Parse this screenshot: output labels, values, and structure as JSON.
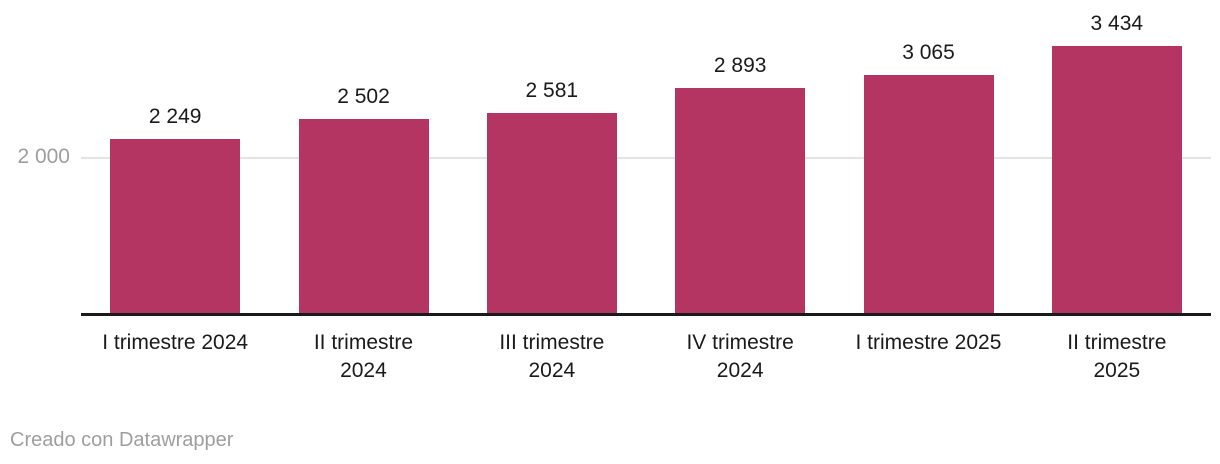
{
  "chart_data": {
    "type": "bar",
    "categories": [
      "I trimestre 2024",
      "II trimestre\n2024",
      "III trimestre\n2024",
      "IV trimestre\n2024",
      "I trimestre 2025",
      "II trimestre\n2025"
    ],
    "values": [
      2249,
      2502,
      2581,
      2893,
      3065,
      3434
    ],
    "value_labels": [
      "2 249",
      "2 502",
      "2 581",
      "2 893",
      "3 065",
      "3 434"
    ],
    "title": "",
    "xlabel": "",
    "ylabel": "",
    "ylim": [
      0,
      3500
    ],
    "yticks": [
      {
        "value": 2000,
        "label": "2 000"
      }
    ],
    "grid": "horizontal",
    "legend": "none"
  },
  "colors": {
    "bar": "#b43561",
    "value_label": "#1a1a1c",
    "axis_label": "#1a1a1c",
    "tick_label": "#9e9e9e",
    "gridline": "#e3e3e3",
    "baseline": "#1a1a1c",
    "background": "#ffffff",
    "footer_text": "#9e9e9e"
  },
  "footer": {
    "attribution": "Creado con Datawrapper"
  }
}
